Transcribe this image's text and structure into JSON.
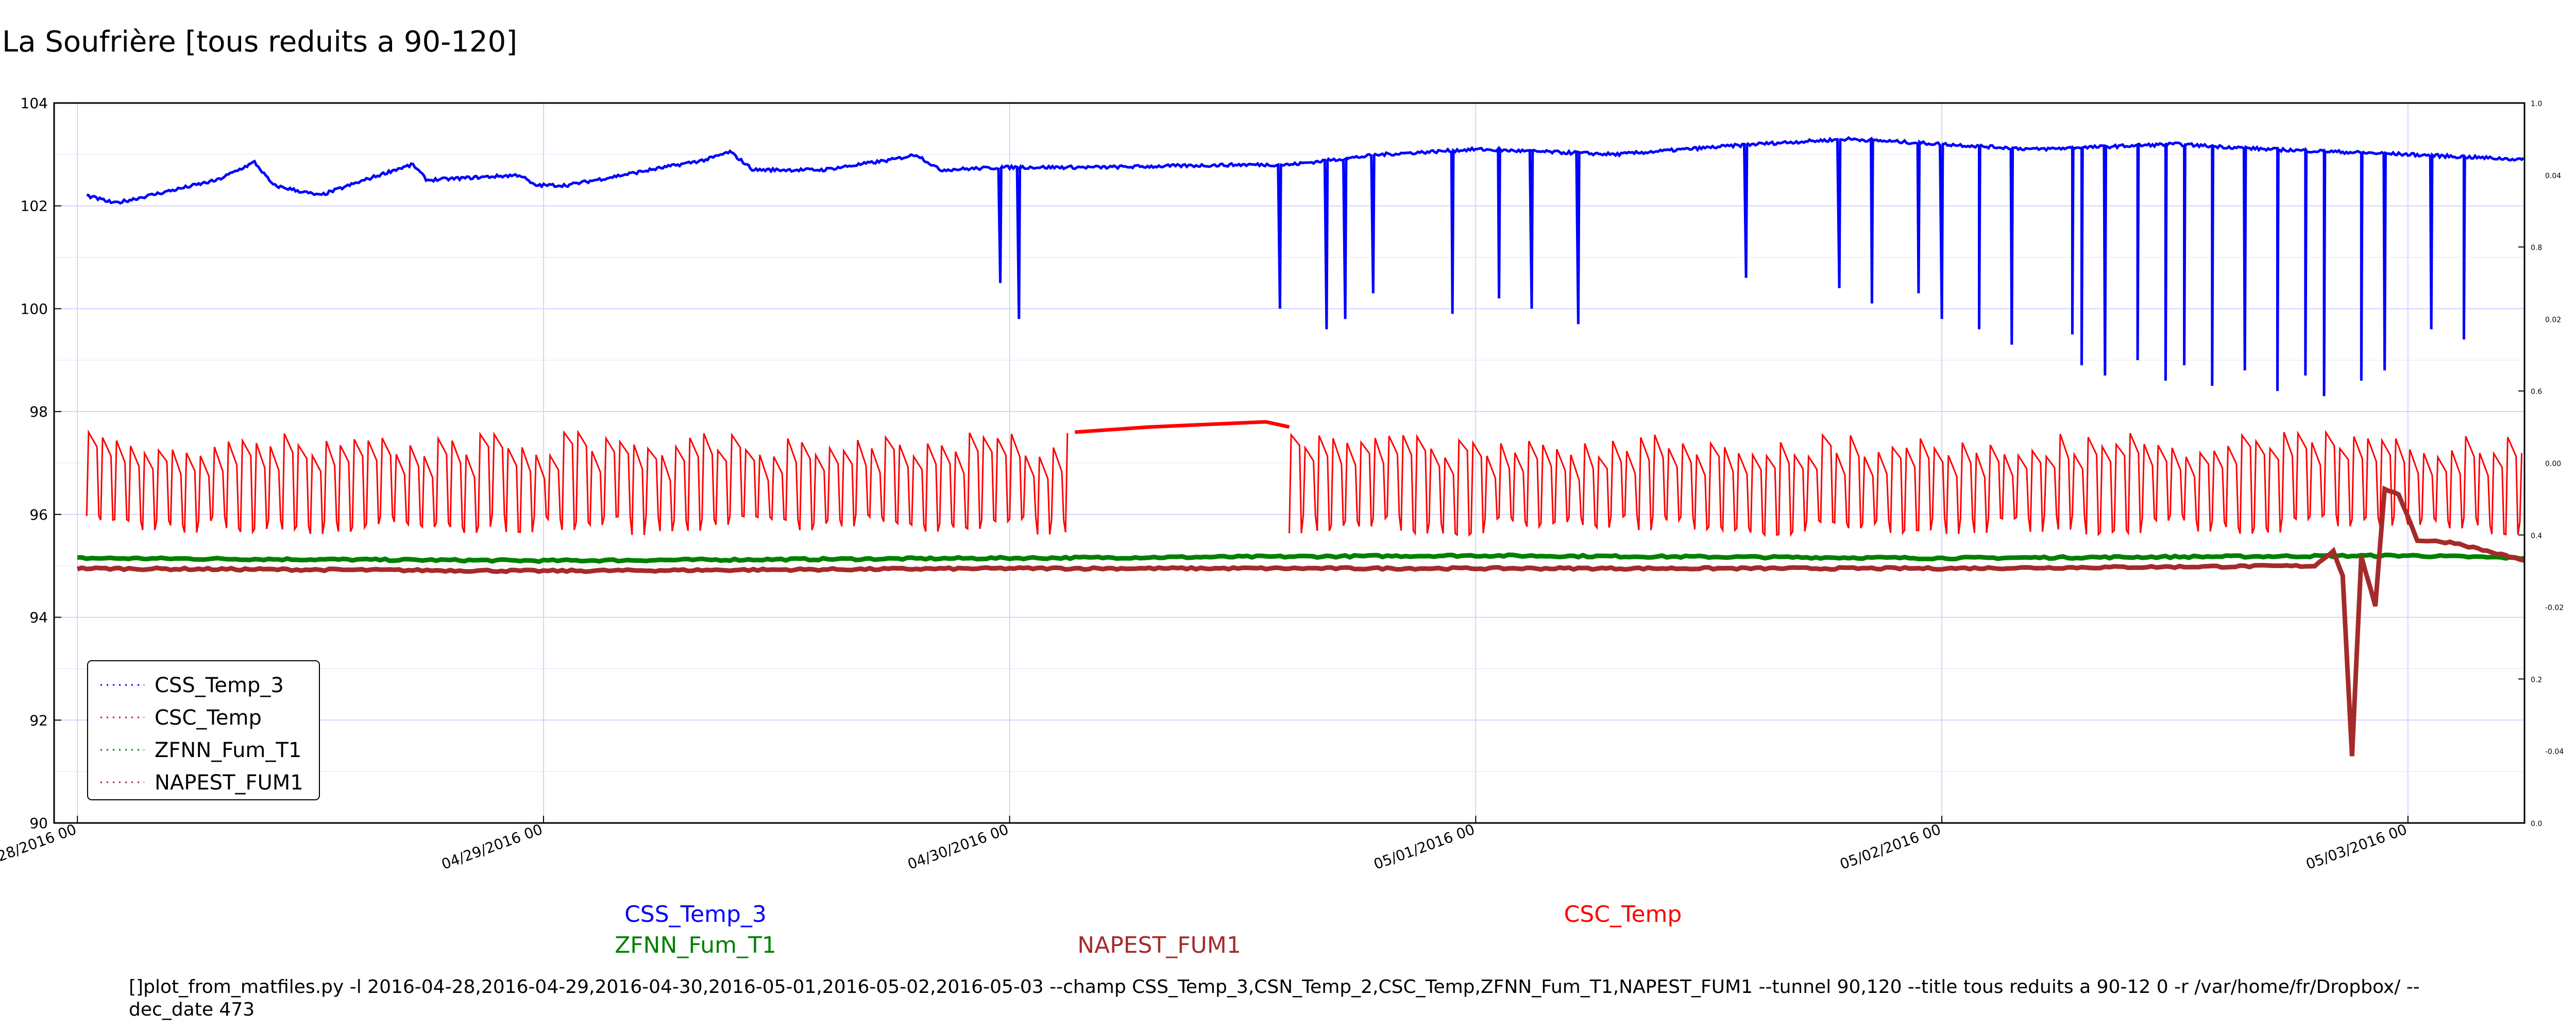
{
  "page": {
    "command_line": "[]plot_from_matfiles.py -l 2016-04-28,2016-04-29,2016-04-30,2016-05-01,2016-05-02,2016-05-03 --champ CSS_Temp_3,CSN_Temp_2,CSC_Temp,ZFNN_Fum_T1,NAPEST_FUM1 --tunnel 90,120 --title tous reduits a 90-12 0 -r /var/home/fr/Dropbox/ --dec_date 473"
  },
  "chart_data": {
    "type": "line",
    "title": "La Soufrière [tous reduits a 90-120]",
    "xlabel": "",
    "ylabel": "",
    "x_ticks": [
      "04/28/2016 00",
      "04/29/2016 00",
      "04/30/2016 00",
      "05/01/2016 00",
      "05/02/2016 00",
      "05/03/2016 00"
    ],
    "xlim": [
      -0.05,
      5.25
    ],
    "ylim": [
      90,
      104
    ],
    "y_ticks": [
      "90",
      "92",
      "94",
      "96",
      "98",
      "100",
      "102",
      "104"
    ],
    "right_axis_ticks": [
      "0.0",
      "0.2",
      "0.4",
      "0.6",
      "0.8",
      "1.0"
    ],
    "right_axis_inner_ticks": [
      "-0.04",
      "-0.02",
      "0.00",
      "0.02",
      "0.04"
    ],
    "grid": true,
    "legend_position": "lower-left",
    "series": [
      {
        "name": "CSS_Temp_3",
        "color": "#0000ff",
        "baseline": [
          [
            0.02,
            102.2
          ],
          [
            0.08,
            102.05
          ],
          [
            0.3,
            102.5
          ],
          [
            0.38,
            102.85
          ],
          [
            0.42,
            102.4
          ],
          [
            0.52,
            102.2
          ],
          [
            0.68,
            102.7
          ],
          [
            0.72,
            102.8
          ],
          [
            0.75,
            102.5
          ],
          [
            0.95,
            102.6
          ],
          [
            0.98,
            102.4
          ],
          [
            1.05,
            102.4
          ],
          [
            1.35,
            102.9
          ],
          [
            1.4,
            103.05
          ],
          [
            1.45,
            102.7
          ],
          [
            1.6,
            102.7
          ],
          [
            1.75,
            102.9
          ],
          [
            1.8,
            103.0
          ],
          [
            1.85,
            102.7
          ],
          [
            2.0,
            102.75
          ],
          [
            2.2,
            102.75
          ],
          [
            2.5,
            102.8
          ],
          [
            2.6,
            102.8
          ],
          [
            2.8,
            103.0
          ],
          [
            3.0,
            103.1
          ],
          [
            3.3,
            103.0
          ],
          [
            3.6,
            103.2
          ],
          [
            3.8,
            103.3
          ],
          [
            4.2,
            103.1
          ],
          [
            4.5,
            103.2
          ],
          [
            4.7,
            103.1
          ],
          [
            5.0,
            103.0
          ],
          [
            5.25,
            102.9
          ]
        ],
        "dips": [
          [
            1.98,
            100.5
          ],
          [
            2.02,
            99.8
          ],
          [
            2.58,
            100.0
          ],
          [
            2.68,
            99.6
          ],
          [
            2.72,
            99.8
          ],
          [
            2.78,
            100.3
          ],
          [
            2.95,
            99.9
          ],
          [
            3.05,
            100.2
          ],
          [
            3.12,
            100.0
          ],
          [
            3.22,
            99.7
          ],
          [
            3.58,
            100.6
          ],
          [
            3.78,
            100.4
          ],
          [
            3.85,
            100.1
          ],
          [
            3.95,
            100.3
          ],
          [
            4.0,
            99.8
          ],
          [
            4.08,
            99.6
          ],
          [
            4.15,
            99.3
          ],
          [
            4.28,
            99.5
          ],
          [
            4.3,
            98.9
          ],
          [
            4.35,
            98.7
          ],
          [
            4.42,
            99.0
          ],
          [
            4.48,
            98.6
          ],
          [
            4.52,
            98.9
          ],
          [
            4.58,
            98.5
          ],
          [
            4.65,
            98.8
          ],
          [
            4.72,
            98.4
          ],
          [
            4.78,
            98.7
          ],
          [
            4.82,
            98.3
          ],
          [
            4.9,
            98.6
          ],
          [
            4.95,
            98.8
          ],
          [
            5.05,
            99.6
          ],
          [
            5.12,
            99.4
          ]
        ]
      },
      {
        "name": "CSC_Temp",
        "color": "#ff0000",
        "low": 95.6,
        "high": 97.6,
        "segments": [
          [
            0.02,
            2.14
          ],
          [
            2.6,
            5.25
          ]
        ],
        "flat": [
          [
            2.14,
            97.6
          ],
          [
            2.3,
            97.7
          ],
          [
            2.55,
            97.8
          ],
          [
            2.6,
            97.7
          ]
        ]
      },
      {
        "name": "ZFNN_Fum_T1",
        "color": "#008000",
        "values": [
          [
            0.0,
            95.15
          ],
          [
            1.0,
            95.1
          ],
          [
            2.0,
            95.15
          ],
          [
            3.0,
            95.2
          ],
          [
            4.0,
            95.15
          ],
          [
            5.0,
            95.2
          ],
          [
            5.25,
            95.15
          ]
        ]
      },
      {
        "name": "NAPEST_FUM1",
        "color": "#a52a2a",
        "values": [
          [
            0.0,
            94.95
          ],
          [
            1.0,
            94.9
          ],
          [
            2.0,
            94.95
          ],
          [
            3.0,
            94.95
          ],
          [
            4.0,
            94.95
          ],
          [
            4.8,
            95.0
          ],
          [
            4.84,
            95.3
          ],
          [
            4.86,
            94.8
          ],
          [
            4.88,
            91.3
          ],
          [
            4.9,
            95.2
          ],
          [
            4.93,
            94.2
          ],
          [
            4.95,
            96.5
          ],
          [
            4.98,
            96.4
          ],
          [
            5.02,
            95.5
          ],
          [
            5.1,
            95.45
          ],
          [
            5.25,
            95.1
          ]
        ]
      }
    ],
    "bottom_labels": [
      "CSS_Temp_3",
      "ZFNN_Fum_T1",
      "NAPEST_FUM1",
      "CSC_Temp"
    ]
  }
}
